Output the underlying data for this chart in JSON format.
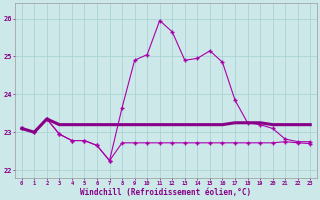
{
  "bg_color": "#cce8e8",
  "grid_color": "#aad4d4",
  "line_color": "#880088",
  "line_color2": "#aa00aa",
  "xlabel": "Windchill (Refroidissement éolien,°C)",
  "xlim": [
    -0.5,
    23.5
  ],
  "ylim": [
    21.8,
    26.4
  ],
  "yticks": [
    22,
    23,
    24,
    25,
    26
  ],
  "xticks": [
    0,
    1,
    2,
    3,
    4,
    5,
    6,
    7,
    8,
    9,
    10,
    11,
    12,
    13,
    14,
    15,
    16,
    17,
    18,
    19,
    20,
    21,
    22,
    23
  ],
  "line1_x": [
    0,
    1,
    2,
    3,
    4,
    5,
    6,
    7,
    8,
    9,
    10,
    11,
    12,
    13,
    14,
    15,
    16,
    17,
    18,
    19,
    20,
    21,
    22,
    23
  ],
  "line1_y": [
    23.1,
    23.0,
    23.35,
    22.95,
    22.78,
    22.78,
    22.65,
    22.25,
    23.65,
    24.9,
    25.05,
    25.95,
    25.65,
    24.9,
    24.95,
    25.15,
    24.85,
    23.85,
    23.25,
    23.2,
    23.1,
    22.82,
    22.75,
    22.75
  ],
  "line2_x": [
    0,
    1,
    2,
    3,
    4,
    5,
    6,
    7,
    8,
    9,
    10,
    11,
    12,
    13,
    14,
    15,
    16,
    17,
    18,
    19,
    20,
    21,
    22,
    23
  ],
  "line2_y": [
    23.1,
    23.0,
    23.35,
    23.2,
    23.2,
    23.2,
    23.2,
    23.2,
    23.2,
    23.2,
    23.2,
    23.2,
    23.2,
    23.2,
    23.2,
    23.2,
    23.2,
    23.25,
    23.25,
    23.25,
    23.2,
    23.2,
    23.2,
    23.2
  ],
  "line3_x": [
    0,
    1,
    2,
    3,
    4,
    5,
    6,
    7,
    8,
    9,
    10,
    11,
    12,
    13,
    14,
    15,
    16,
    17,
    18,
    19,
    20,
    21,
    22,
    23
  ],
  "line3_y": [
    23.1,
    23.0,
    23.35,
    22.95,
    22.78,
    22.78,
    22.65,
    22.25,
    22.72,
    22.72,
    22.72,
    22.72,
    22.72,
    22.72,
    22.72,
    22.72,
    22.72,
    22.72,
    22.72,
    22.72,
    22.72,
    22.75,
    22.72,
    22.7
  ]
}
